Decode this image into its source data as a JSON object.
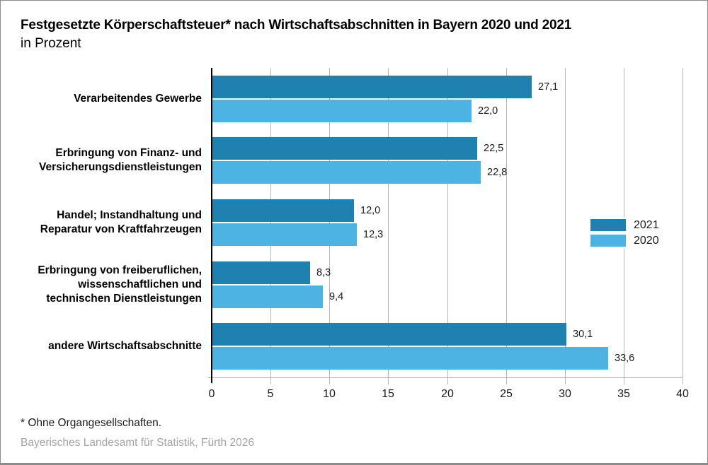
{
  "header": {
    "title": "Festgesetzte Körperschaftsteuer* nach Wirtschaftsabschnitten in Bayern 2020 und 2021",
    "subtitle": "in Prozent"
  },
  "legend": {
    "items": [
      {
        "label": "2021",
        "color": "#1f81af"
      },
      {
        "label": "2020",
        "color": "#4db3e2"
      }
    ]
  },
  "footer": {
    "footnote": "* Ohne Organgesellschaften.",
    "source": "Bayerisches Landesamt für Statistik, Fürth 2026"
  },
  "colors": {
    "series_2021": "#1f81af",
    "series_2020": "#4db3e2",
    "gridline": "#b3b3b3",
    "axis": "#000000",
    "source_text": "#a3a3a3",
    "frame_border": "#8c8c8c"
  },
  "chart_data": {
    "type": "bar",
    "orientation": "horizontal",
    "title": "Festgesetzte Körperschaftsteuer* nach Wirtschaftsabschnitten in Bayern 2020 und 2021",
    "subtitle": "in Prozent",
    "categories": [
      "Verarbeitendes Gewerbe",
      "Erbringung von Finanz- und\nVersicherungsdienstleistungen",
      "Handel; Instandhaltung und\nReparatur von Kraftfahrzeugen",
      "Erbringung von freiberuflichen,\nwissenschaftlichen und\ntechnischen Dienstleistungen",
      "andere Wirtschaftsabschnitte"
    ],
    "series": [
      {
        "name": "2021",
        "color": "#1f81af",
        "values": [
          27.1,
          22.5,
          12.0,
          8.3,
          30.1
        ],
        "value_labels": [
          "27,1",
          "22,5",
          "12,0",
          "8,3",
          "30,1"
        ]
      },
      {
        "name": "2020",
        "color": "#4db3e2",
        "values": [
          22.0,
          22.8,
          12.3,
          9.4,
          33.6
        ],
        "value_labels": [
          "22,0",
          "22,8",
          "12,3",
          "9,4",
          "33,6"
        ]
      }
    ],
    "xlabel": "",
    "ylabel": "",
    "xlim": [
      0,
      40
    ],
    "xticks": [
      0,
      5,
      10,
      15,
      20,
      25,
      30,
      35,
      40
    ],
    "grid": true,
    "legend_position": "right-middle",
    "footnote": "* Ohne Organgesellschaften.",
    "source": "Bayerisches Landesamt für Statistik, Fürth 2026"
  }
}
